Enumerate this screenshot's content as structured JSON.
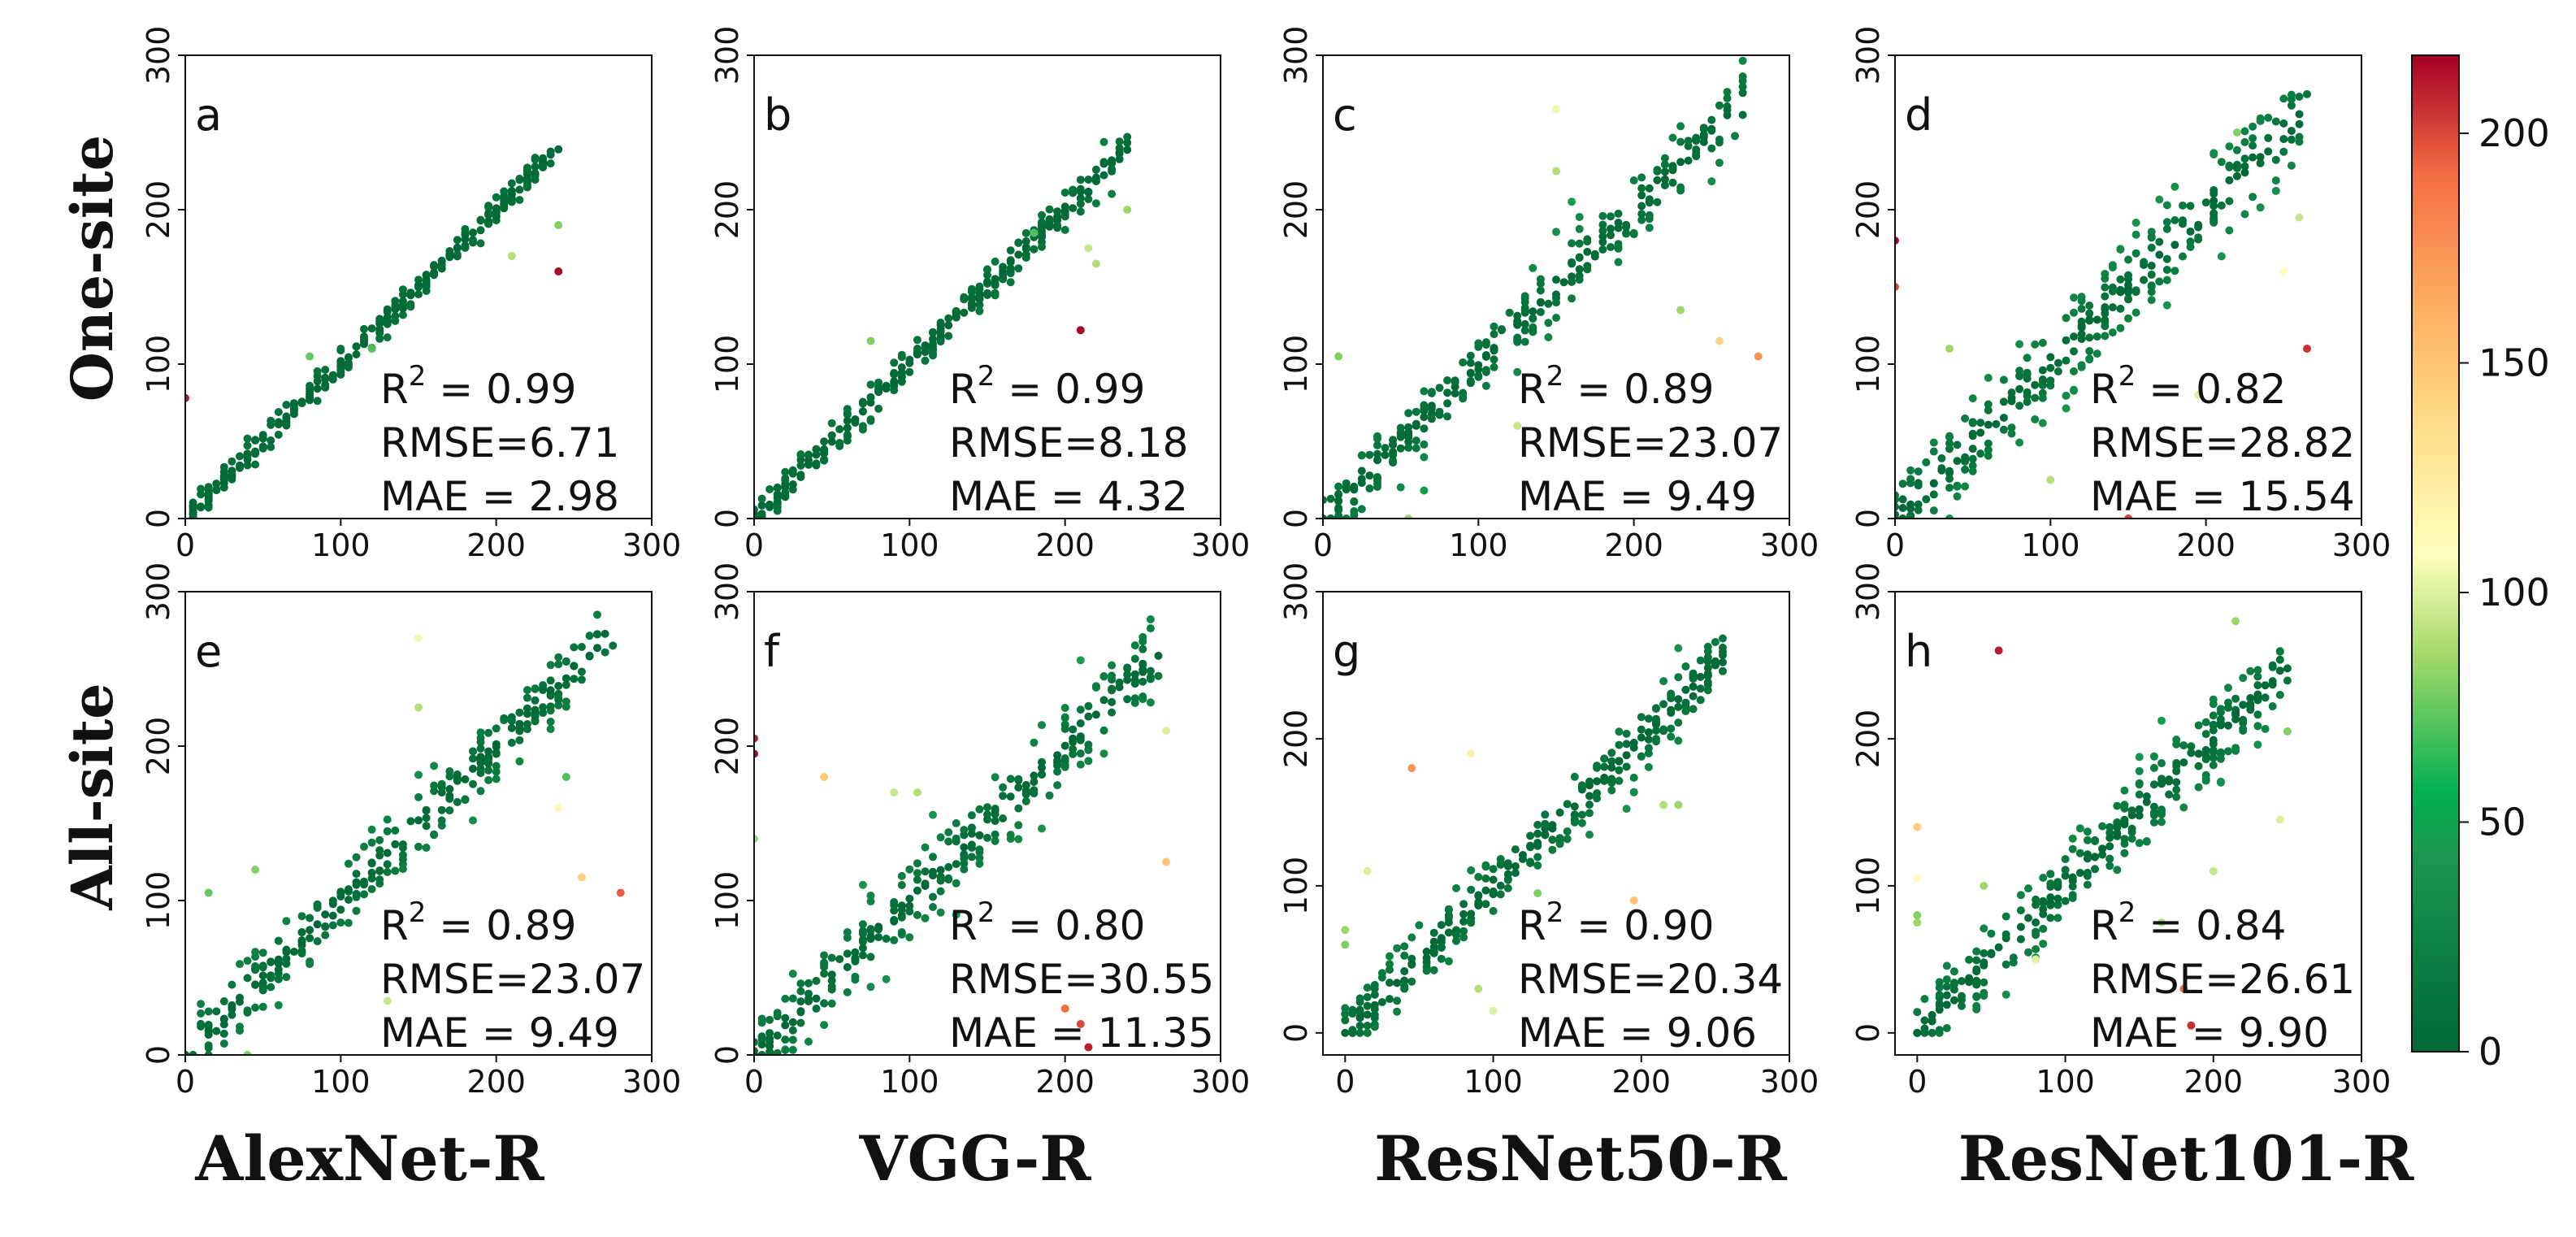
{
  "row_labels": [
    "One-site",
    "All-site"
  ],
  "col_labels": [
    "AlexNet-R",
    "VGG-R",
    "ResNet50-R",
    "ResNet101-R"
  ],
  "colorbar": {
    "min": 0,
    "max": 217,
    "ticks": [
      "0",
      "50",
      "100",
      "150",
      "200"
    ],
    "tick_values": [
      0,
      50,
      100,
      150,
      200
    ],
    "colormap": "RdYlGn_r"
  },
  "chart_data": [
    {
      "type": "scatter",
      "panel": "a",
      "model": "AlexNet-R",
      "setting": "One-site",
      "xlim": [
        0,
        300
      ],
      "ylim": [
        0,
        300
      ],
      "xticks": [
        "0",
        "100",
        "200",
        "300"
      ],
      "yticks": [
        "0",
        "100",
        "200",
        "300"
      ],
      "r2_label": "R",
      "r2_value": "0.99",
      "rmse": "RMSE=6.71",
      "mae": "MAE = 2.98",
      "spread": 5,
      "max_x": 240,
      "outliers": [
        [
          240,
          160,
          215
        ],
        [
          0,
          78,
          210
        ],
        [
          210,
          170,
          90
        ],
        [
          240,
          190,
          80
        ],
        [
          80,
          105,
          75
        ],
        [
          120,
          110,
          70
        ]
      ]
    },
    {
      "type": "scatter",
      "panel": "b",
      "model": "VGG-R",
      "setting": "One-site",
      "xlim": [
        0,
        300
      ],
      "ylim": [
        0,
        300
      ],
      "xticks": [
        "0",
        "100",
        "200",
        "300"
      ],
      "yticks": [
        "0",
        "100",
        "200",
        "300"
      ],
      "r2_label": "R",
      "r2_value": "0.99",
      "rmse": "RMSE=8.18",
      "mae": "MAE = 4.32",
      "spread": 7,
      "max_x": 240,
      "outliers": [
        [
          210,
          122,
          215
        ],
        [
          215,
          175,
          95
        ],
        [
          220,
          165,
          90
        ],
        [
          240,
          200,
          85
        ],
        [
          75,
          115,
          80
        ],
        [
          180,
          185,
          70
        ]
      ]
    },
    {
      "type": "scatter",
      "panel": "c",
      "model": "ResNet50-R",
      "setting": "One-site",
      "xlim": [
        0,
        300
      ],
      "ylim": [
        0,
        300
      ],
      "xticks": [
        "0",
        "100",
        "200",
        "300"
      ],
      "yticks": [
        "0",
        "100",
        "200",
        "300"
      ],
      "r2_label": "R",
      "r2_value": "0.89",
      "rmse": "RMSE=23.07",
      "mae": "MAE = 9.49",
      "spread": 16,
      "max_x": 270,
      "outliers": [
        [
          280,
          105,
          175
        ],
        [
          255,
          115,
          140
        ],
        [
          150,
          265,
          105
        ],
        [
          150,
          225,
          90
        ],
        [
          10,
          105,
          80
        ],
        [
          55,
          0,
          85
        ],
        [
          125,
          60,
          95
        ],
        [
          230,
          135,
          85
        ]
      ]
    },
    {
      "type": "scatter",
      "panel": "d",
      "model": "ResNet101-R",
      "setting": "One-site",
      "xlim": [
        0,
        300
      ],
      "ylim": [
        0,
        300
      ],
      "xticks": [
        "0",
        "100",
        "200",
        "300"
      ],
      "yticks": [
        "0",
        "100",
        "200",
        "300"
      ],
      "r2_label": "R",
      "r2_value": "0.82",
      "rmse": "RMSE=28.82",
      "mae": "MAE = 15.54",
      "spread": 22,
      "max_x": 265,
      "outliers": [
        [
          265,
          110,
          205
        ],
        [
          0,
          180,
          215
        ],
        [
          0,
          150,
          200
        ],
        [
          150,
          0,
          200
        ],
        [
          250,
          160,
          110
        ],
        [
          260,
          195,
          95
        ],
        [
          100,
          25,
          90
        ],
        [
          35,
          110,
          85
        ],
        [
          195,
          80,
          100
        ],
        [
          220,
          250,
          80
        ]
      ]
    },
    {
      "type": "scatter",
      "panel": "e",
      "model": "AlexNet-R",
      "setting": "All-site",
      "xlim": [
        0,
        300
      ],
      "ylim": [
        0,
        300
      ],
      "xticks": [
        "0",
        "100",
        "200",
        "300"
      ],
      "yticks": [
        "0",
        "100",
        "200",
        "300"
      ],
      "r2_label": "R",
      "r2_value": "0.89",
      "rmse": "RMSE=23.07",
      "mae": "MAE = 9.49",
      "spread": 16,
      "max_x": 275,
      "outliers": [
        [
          280,
          105,
          195
        ],
        [
          255,
          115,
          145
        ],
        [
          240,
          160,
          115
        ],
        [
          150,
          270,
          105
        ],
        [
          150,
          225,
          90
        ],
        [
          45,
          120,
          80
        ],
        [
          15,
          105,
          75
        ],
        [
          130,
          35,
          95
        ],
        [
          40,
          0,
          80
        ],
        [
          245,
          180,
          70
        ]
      ]
    },
    {
      "type": "scatter",
      "panel": "f",
      "model": "VGG-R",
      "setting": "All-site",
      "xlim": [
        0,
        300
      ],
      "ylim": [
        0,
        300
      ],
      "xticks": [
        "0",
        "100",
        "200",
        "300"
      ],
      "yticks": [
        "0",
        "100",
        "200",
        "300"
      ],
      "r2_label": "R",
      "r2_value": "0.80",
      "rmse": "RMSE=30.55",
      "mae": "MAE = 11.35",
      "spread": 20,
      "max_x": 260,
      "outliers": [
        [
          0,
          205,
          210
        ],
        [
          0,
          195,
          215
        ],
        [
          45,
          180,
          145
        ],
        [
          90,
          170,
          95
        ],
        [
          105,
          170,
          90
        ],
        [
          265,
          125,
          150
        ],
        [
          265,
          210,
          100
        ],
        [
          200,
          30,
          190
        ],
        [
          210,
          20,
          200
        ],
        [
          215,
          5,
          210
        ],
        [
          0,
          140,
          85
        ]
      ]
    },
    {
      "type": "scatter",
      "panel": "g",
      "model": "ResNet50-R",
      "setting": "All-site",
      "xlim": [
        -15,
        300
      ],
      "ylim": [
        -15,
        300
      ],
      "xticks": [
        "0",
        "100",
        "200",
        "300"
      ],
      "yticks": [
        "0",
        "100",
        "200",
        "300"
      ],
      "r2_label": "R",
      "r2_value": "0.90",
      "rmse": "RMSE=20.34",
      "mae": "MAE = 9.06",
      "spread": 15,
      "max_x": 255,
      "outliers": [
        [
          45,
          180,
          175
        ],
        [
          85,
          190,
          120
        ],
        [
          15,
          110,
          100
        ],
        [
          215,
          155,
          90
        ],
        [
          225,
          155,
          85
        ],
        [
          0,
          70,
          85
        ],
        [
          0,
          60,
          80
        ],
        [
          90,
          30,
          90
        ],
        [
          100,
          15,
          100
        ],
        [
          195,
          90,
          150
        ],
        [
          130,
          95,
          80
        ]
      ]
    },
    {
      "type": "scatter",
      "panel": "h",
      "model": "ResNet101-R",
      "setting": "All-site",
      "xlim": [
        -15,
        300
      ],
      "ylim": [
        -15,
        300
      ],
      "xticks": [
        "0",
        "100",
        "200",
        "300"
      ],
      "yticks": [
        "0",
        "100",
        "200",
        "300"
      ],
      "r2_label": "R",
      "r2_value": "0.84",
      "rmse": "RMSE=26.61",
      "mae": "MAE = 9.90",
      "spread": 18,
      "max_x": 250,
      "outliers": [
        [
          55,
          260,
          210
        ],
        [
          215,
          280,
          85
        ],
        [
          0,
          140,
          145
        ],
        [
          0,
          105,
          110
        ],
        [
          0,
          75,
          85
        ],
        [
          0,
          80,
          80
        ],
        [
          245,
          145,
          100
        ],
        [
          250,
          205,
          80
        ],
        [
          180,
          30,
          190
        ],
        [
          185,
          5,
          205
        ],
        [
          200,
          110,
          95
        ],
        [
          80,
          50,
          100
        ],
        [
          45,
          100,
          85
        ],
        [
          165,
          75,
          90
        ]
      ]
    }
  ]
}
